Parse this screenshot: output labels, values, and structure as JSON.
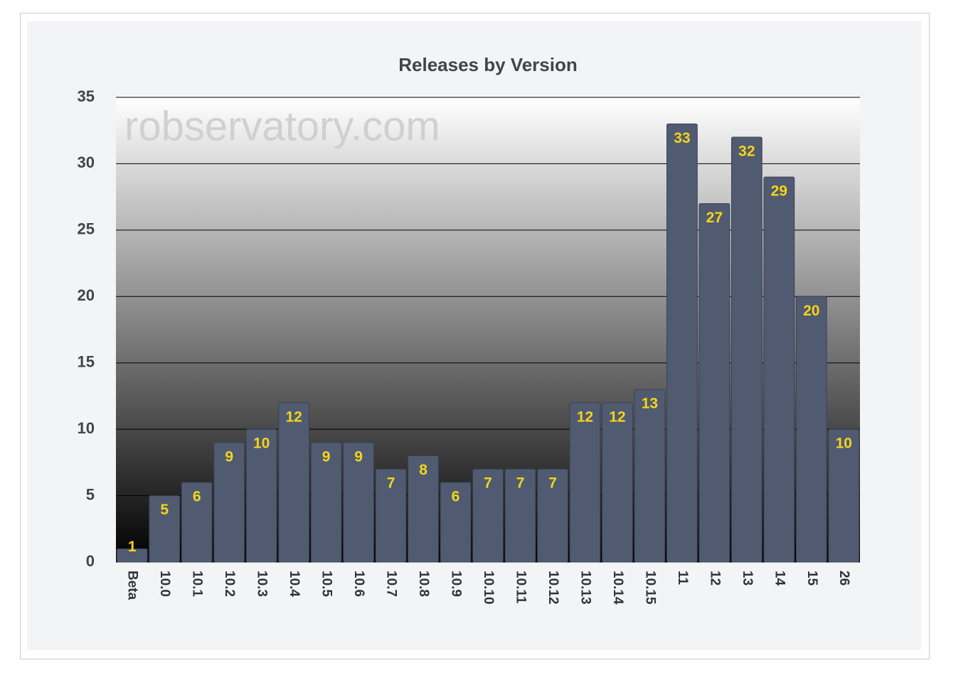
{
  "chart_data": {
    "type": "bar",
    "title": "Releases by Version",
    "watermark": "robservatory.com",
    "categories": [
      "Beta",
      "10.0",
      "10.1",
      "10.2",
      "10.3",
      "10.4",
      "10.5",
      "10.6",
      "10.7",
      "10.8",
      "10.9",
      "10.10",
      "10.11",
      "10.12",
      "10.13",
      "10.14",
      "10.15",
      "11",
      "12",
      "13",
      "14",
      "15",
      "26"
    ],
    "values": [
      1,
      5,
      6,
      9,
      10,
      12,
      9,
      9,
      7,
      8,
      6,
      7,
      7,
      7,
      12,
      12,
      13,
      33,
      27,
      32,
      29,
      20,
      10
    ],
    "color": "#505b72",
    "label_color": "#f7d417",
    "ylim": [
      0,
      35
    ],
    "yticks": [
      0,
      5,
      10,
      15,
      20,
      25,
      30,
      35
    ],
    "grid": true
  }
}
